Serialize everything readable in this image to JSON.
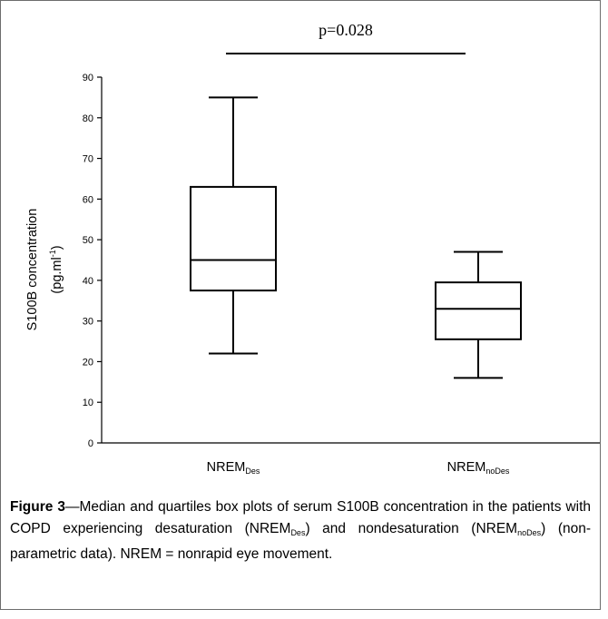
{
  "chart_data": {
    "type": "boxplot",
    "ylabel_main": "S100B concentration",
    "ylabel_unit_base": "(pg.ml",
    "ylabel_unit_sup": "-1",
    "ylabel_unit_end": ")",
    "ylim": [
      0,
      90
    ],
    "yticks": [
      0,
      10,
      20,
      30,
      40,
      50,
      60,
      70,
      80,
      90
    ],
    "grid": false,
    "categories": [
      {
        "base": "NREM",
        "sub": "Des"
      },
      {
        "base": "NREM",
        "sub": "noDes"
      }
    ],
    "boxes": [
      {
        "min": 22,
        "q1": 37.5,
        "median": 45,
        "q3": 63,
        "max": 85
      },
      {
        "min": 16,
        "q1": 25.5,
        "median": 33,
        "q3": 39.5,
        "max": 47
      }
    ],
    "annotation": "p=0.028"
  },
  "caption": {
    "label": "Figure 3",
    "text_1": "—Median and quartiles box plots of serum S100B concentration in the patients with COPD experiencing desaturation (NREM",
    "sub_1": "Des",
    "text_2": ") and nondesaturation (NREM",
    "sub_2": "noDes",
    "text_3": ") (non-parametric data). NREM = nonrapid eye movement."
  }
}
